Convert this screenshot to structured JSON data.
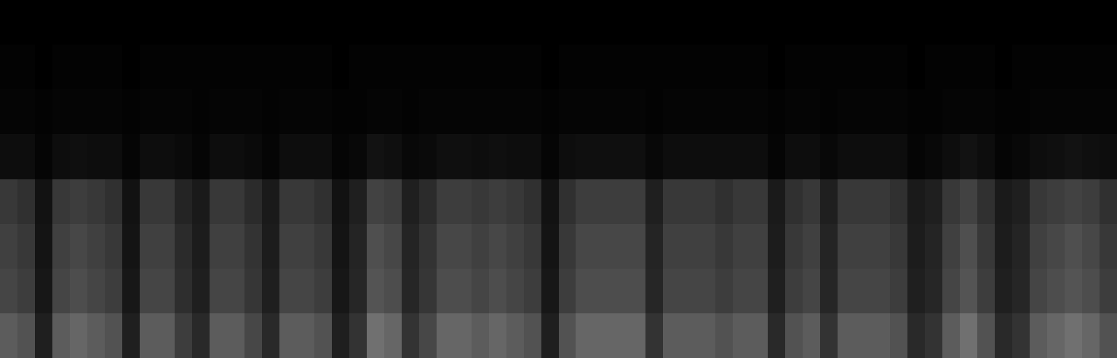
{
  "chart_data": {
    "type": "heatmap",
    "tick_labels": false,
    "grid": false,
    "colors": [
      "#000000",
      "#ffffff"
    ],
    "zlim": [
      0,
      100
    ],
    "z": [
      [
        36,
        32,
        12,
        36,
        40,
        36,
        32,
        12,
        36,
        36,
        24,
        16,
        36,
        36,
        28,
        16,
        36,
        36,
        32,
        12,
        20,
        44,
        40,
        20,
        28,
        40,
        40,
        36,
        40,
        36,
        32,
        12,
        32,
        40,
        40,
        40,
        40,
        20,
        36,
        36,
        36,
        32,
        36,
        36,
        16,
        32,
        36,
        20,
        36,
        36,
        36,
        32,
        16,
        20,
        36,
        44,
        32,
        16,
        20,
        36,
        40,
        44,
        40,
        32
      ],
      [
        27,
        24,
        9,
        27,
        30,
        27,
        24,
        9,
        27,
        27,
        18,
        12,
        27,
        27,
        21,
        12,
        27,
        27,
        24,
        9,
        15,
        33,
        30,
        15,
        21,
        30,
        30,
        27,
        30,
        27,
        24,
        9,
        24,
        30,
        30,
        30,
        30,
        15,
        27,
        27,
        27,
        24,
        27,
        27,
        12,
        24,
        27,
        15,
        27,
        27,
        27,
        24,
        12,
        15,
        27,
        33,
        24,
        12,
        15,
        27,
        30,
        33,
        30,
        24
      ],
      [
        25,
        22,
        8,
        25,
        28,
        25,
        22,
        8,
        25,
        25,
        17,
        11,
        25,
        25,
        20,
        11,
        25,
        25,
        22,
        8,
        14,
        31,
        28,
        14,
        20,
        28,
        28,
        25,
        28,
        25,
        22,
        8,
        22,
        28,
        28,
        28,
        28,
        14,
        25,
        25,
        25,
        22,
        25,
        25,
        11,
        22,
        25,
        14,
        25,
        25,
        25,
        22,
        11,
        14,
        25,
        31,
        22,
        11,
        14,
        25,
        28,
        31,
        28,
        22
      ],
      [
        22,
        19,
        7,
        22,
        24,
        22,
        19,
        7,
        22,
        22,
        14,
        10,
        22,
        22,
        17,
        10,
        22,
        22,
        19,
        7,
        12,
        26,
        24,
        12,
        17,
        24,
        24,
        22,
        24,
        22,
        19,
        7,
        19,
        24,
        24,
        24,
        24,
        12,
        22,
        22,
        22,
        19,
        22,
        22,
        10,
        19,
        22,
        12,
        22,
        22,
        22,
        19,
        10,
        12,
        22,
        26,
        19,
        10,
        12,
        22,
        24,
        26,
        24,
        19
      ],
      [
        5,
        5,
        2,
        5,
        6,
        5,
        5,
        2,
        5,
        5,
        4,
        2,
        5,
        5,
        4,
        2,
        5,
        5,
        5,
        2,
        3,
        7,
        6,
        3,
        4,
        6,
        6,
        5,
        6,
        5,
        5,
        2,
        5,
        6,
        6,
        6,
        6,
        3,
        5,
        5,
        5,
        5,
        5,
        5,
        2,
        5,
        5,
        3,
        5,
        5,
        5,
        5,
        2,
        3,
        5,
        7,
        5,
        2,
        3,
        5,
        6,
        7,
        6,
        5
      ],
      [
        2,
        2,
        1,
        2,
        2,
        2,
        2,
        1,
        2,
        2,
        2,
        1,
        2,
        2,
        2,
        1,
        2,
        2,
        2,
        1,
        1,
        2,
        2,
        1,
        2,
        2,
        2,
        2,
        2,
        2,
        2,
        1,
        2,
        2,
        2,
        2,
        2,
        1,
        2,
        2,
        2,
        2,
        2,
        2,
        1,
        2,
        2,
        1,
        2,
        2,
        2,
        2,
        1,
        1,
        2,
        2,
        2,
        1,
        1,
        2,
        2,
        2,
        2,
        2
      ],
      [
        1,
        1,
        0,
        1,
        1,
        1,
        1,
        0,
        1,
        1,
        1,
        1,
        1,
        1,
        1,
        1,
        1,
        1,
        1,
        0,
        1,
        1,
        1,
        1,
        1,
        1,
        1,
        1,
        1,
        1,
        1,
        0,
        1,
        1,
        1,
        1,
        1,
        1,
        1,
        1,
        1,
        1,
        1,
        1,
        0,
        1,
        1,
        1,
        1,
        1,
        1,
        1,
        0,
        1,
        1,
        1,
        1,
        0,
        1,
        1,
        1,
        1,
        1,
        1
      ],
      [
        0,
        0,
        0,
        0,
        0,
        0,
        0,
        0,
        0,
        0,
        0,
        0,
        0,
        0,
        0,
        0,
        0,
        0,
        0,
        0,
        0,
        0,
        0,
        0,
        0,
        0,
        0,
        0,
        0,
        0,
        0,
        0,
        0,
        0,
        0,
        0,
        0,
        0,
        0,
        0,
        0,
        0,
        0,
        0,
        0,
        0,
        0,
        0,
        0,
        0,
        0,
        0,
        0,
        0,
        0,
        0,
        0,
        0,
        0,
        0,
        0,
        0,
        0,
        0
      ]
    ]
  }
}
